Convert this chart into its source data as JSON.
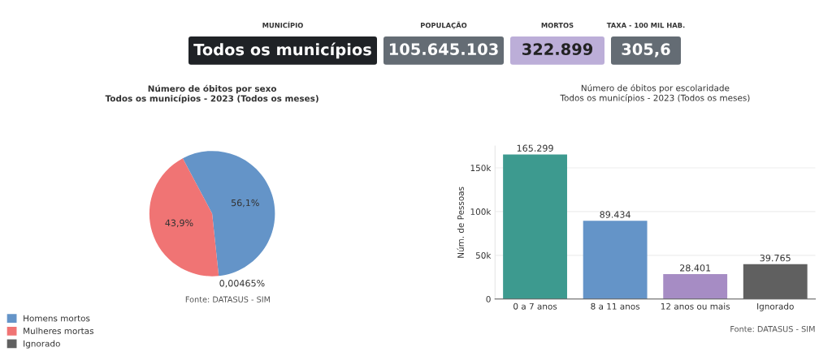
{
  "chart_data": [
    {
      "type": "other",
      "categories": [
        "MUNICÍPIO",
        "POPULAÇÃO",
        "MORTOS",
        "TAXA - 100 MIL HAB."
      ],
      "value_labels": [
        "Todos os municípios",
        "105.645.103",
        "322.899",
        "305,6"
      ],
      "colors": [
        "#1f2226",
        "#646c74",
        "#bcaed8",
        "#646c74"
      ]
    },
    {
      "type": "pie",
      "title": "Número de óbitos por sexo\nTodos os municípios - 2023 (Todos os meses)",
      "categories": [
        "Homens mortos",
        "Mulheres mortas",
        "Ignorado"
      ],
      "values": [
        56.1,
        43.9,
        0.00465
      ],
      "value_labels": [
        "56,1%",
        "43,9%",
        "0,00465%"
      ],
      "colors": [
        "#6494c8",
        "#f07474",
        "#606060"
      ],
      "legend": "bottom left",
      "annotations": [
        "Fonte: DATASUS - SIM"
      ]
    },
    {
      "type": "bar",
      "title": "Número de óbitos por escolaridade\nTodos os municípios - 2023 (Todos os meses)",
      "ylabel": "Núm. de Pessoas",
      "categories": [
        "0 a 7 anos",
        "8 a 11 anos",
        "12 anos ou mais",
        "Ignorado"
      ],
      "values": [
        165299,
        89434,
        28401,
        39765
      ],
      "value_labels": [
        "165.299",
        "89.434",
        "28.401",
        "39.765"
      ],
      "colors": [
        "#3d9a8f",
        "#6494c8",
        "#a68cc4",
        "#606060"
      ],
      "ylim": [
        0,
        175000
      ],
      "yticks": [
        0,
        {
          "value": 50000,
          "label": "50k"
        },
        {
          "value": 100000,
          "label": "100k"
        },
        {
          "value": 150000,
          "label": "150k"
        }
      ],
      "grid": "y",
      "annotations": [
        "Fonte: DATASUS - SIM"
      ]
    }
  ]
}
